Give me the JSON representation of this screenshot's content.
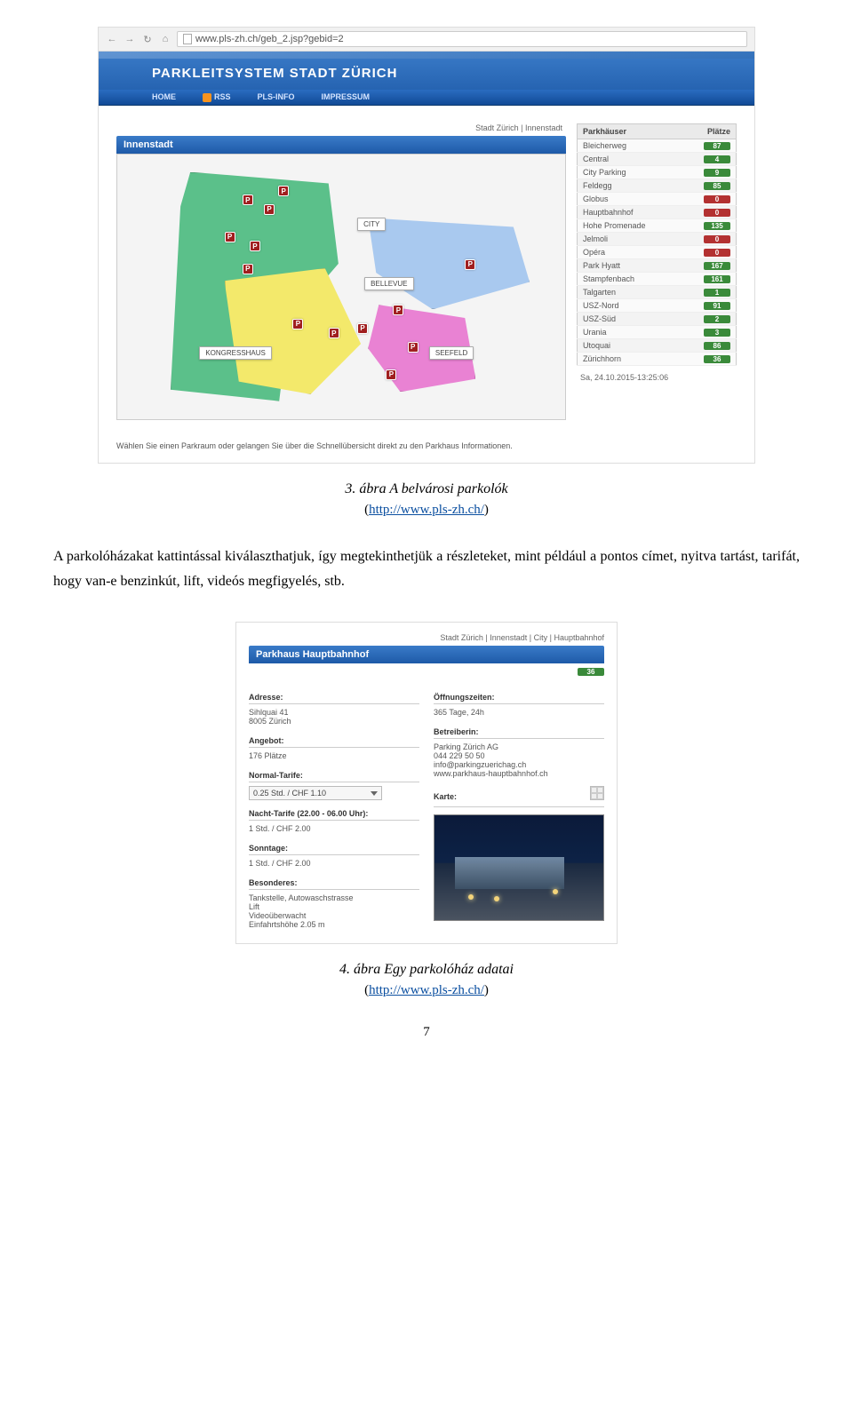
{
  "browser": {
    "url": "www.pls-zh.ch/geb_2.jsp?gebid=2"
  },
  "site": {
    "title": "PARKLEITSYSTEM STADT ZÜRICH",
    "nav": {
      "home": "HOME",
      "rss": "RSS",
      "info": "PLS-INFO",
      "impressum": "IMPRESSUM"
    }
  },
  "shot1": {
    "breadcrumb": "Stadt Zürich | Innenstadt",
    "panel_title": "Innenstadt",
    "map_labels": {
      "city": "CITY",
      "bellevue": "BELLEVUE",
      "kongresshaus": "KONGRESSHAUS",
      "seefeld": "SEEFELD"
    },
    "table_head": {
      "name": "Parkhäuser",
      "places": "Plätze"
    },
    "rows": [
      {
        "name": "Bleicherweg",
        "val": "87",
        "cls": "g"
      },
      {
        "name": "Central",
        "val": "4",
        "cls": "g"
      },
      {
        "name": "City Parking",
        "val": "9",
        "cls": "g"
      },
      {
        "name": "Feldegg",
        "val": "85",
        "cls": "g"
      },
      {
        "name": "Globus",
        "val": "0",
        "cls": "r"
      },
      {
        "name": "Hauptbahnhof",
        "val": "0",
        "cls": "r"
      },
      {
        "name": "Hohe Promenade",
        "val": "135",
        "cls": "g"
      },
      {
        "name": "Jelmoli",
        "val": "0",
        "cls": "r"
      },
      {
        "name": "Opéra",
        "val": "0",
        "cls": "r"
      },
      {
        "name": "Park Hyatt",
        "val": "167",
        "cls": "g"
      },
      {
        "name": "Stampfenbach",
        "val": "161",
        "cls": "g"
      },
      {
        "name": "Talgarten",
        "val": "1",
        "cls": "g"
      },
      {
        "name": "USZ-Nord",
        "val": "91",
        "cls": "g"
      },
      {
        "name": "USZ-Süd",
        "val": "2",
        "cls": "g"
      },
      {
        "name": "Urania",
        "val": "3",
        "cls": "g"
      },
      {
        "name": "Utoquai",
        "val": "86",
        "cls": "g"
      },
      {
        "name": "Zürichhorn",
        "val": "36",
        "cls": "g"
      }
    ],
    "timestamp": "Sa, 24.10.2015-13:25:06",
    "footer": "Wählen Sie einen Parkraum oder gelangen Sie über die Schnellübersicht direkt zu den Parkhaus Informationen."
  },
  "caption1": {
    "text": "3. ábra A belvárosi parkolók",
    "link_label": "http://www.pls-zh.ch/",
    "open": "(",
    "close": ")"
  },
  "body_para": "A parkolóházakat kattintással kiválaszthatjuk, így megtekinthetjük a részleteket, mint például a pontos címet, nyitva tartást, tarifát, hogy van-e benzinkút, lift, videós megfigyelés, stb.",
  "shot2": {
    "breadcrumb": "Stadt Zürich | Innenstadt | City | Hauptbahnhof",
    "panel_title": "Parkhaus Hauptbahnhof",
    "availability": "36",
    "left": {
      "adresse_l": "Adresse:",
      "adresse_v1": "Sihlquai 41",
      "adresse_v2": "8005 Zürich",
      "angebot_l": "Angebot:",
      "angebot_v": "176 Plätze",
      "normal_l": "Normal-Tarife:",
      "normal_v": "0.25 Std. / CHF 1.10",
      "nacht_l": "Nacht-Tarife (22.00 - 06.00 Uhr):",
      "nacht_v": "1 Std. / CHF 2.00",
      "sonn_l": "Sonntage:",
      "sonn_v": "1 Std. / CHF 2.00",
      "bes_l": "Besonderes:",
      "bes_v1": "Tankstelle, Autowaschstrasse",
      "bes_v2": "Lift",
      "bes_v3": "Videoüberwacht",
      "bes_v4": "Einfahrtshöhe 2.05 m"
    },
    "right": {
      "open_l": "Öffnungszeiten:",
      "open_v": "365 Tage, 24h",
      "betr_l": "Betreiberin:",
      "betr_v1": "Parking Zürich AG",
      "betr_v2": "044 229 50 50",
      "betr_v3": "info@parkingzuerichag.ch",
      "betr_v4": "www.parkhaus-hauptbahnhof.ch",
      "karte_l": "Karte:"
    }
  },
  "caption2": {
    "text": "4. ábra Egy parkolóház adatai",
    "link_label": "http://www.pls-zh.ch/",
    "open": "(",
    "close": ")"
  },
  "page_num": "7"
}
